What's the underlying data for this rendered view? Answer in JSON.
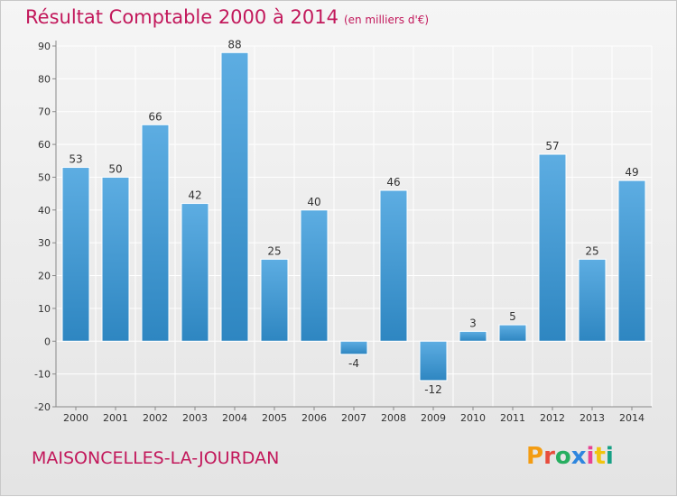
{
  "header": {
    "title": "Résultat Comptable 2000 à 2014",
    "subtitle": "(en milliers d'€)"
  },
  "footer": {
    "place": "MAISONCELLES-LA-JOURDAN",
    "logo_text": "Proxiti",
    "logo_colors": [
      "#f39c12",
      "#e74c3c",
      "#27ae60",
      "#2e86de",
      "#e84393",
      "#f1c40f",
      "#16a085"
    ]
  },
  "colors": {
    "title": "#c2185b",
    "bar_light": "#5dade2",
    "bar_dark": "#2e86c1",
    "grid": "#ffffff",
    "axis": "#888888"
  },
  "chart_data": {
    "type": "bar",
    "title": "Résultat Comptable 2000 à 2014",
    "subtitle": "(en milliers d'€)",
    "xlabel": "",
    "ylabel": "",
    "categories": [
      "2000",
      "2001",
      "2002",
      "2003",
      "2004",
      "2005",
      "2006",
      "2007",
      "2008",
      "2009",
      "2010",
      "2011",
      "2012",
      "2013",
      "2014"
    ],
    "values": [
      53,
      50,
      66,
      42,
      88,
      25,
      40,
      -4,
      46,
      -12,
      3,
      5,
      57,
      25,
      49
    ],
    "ylim": [
      -20,
      90
    ],
    "yticks": [
      -20,
      -10,
      0,
      10,
      20,
      30,
      40,
      50,
      60,
      70,
      80,
      90
    ],
    "grid": true,
    "data_labels": true
  }
}
